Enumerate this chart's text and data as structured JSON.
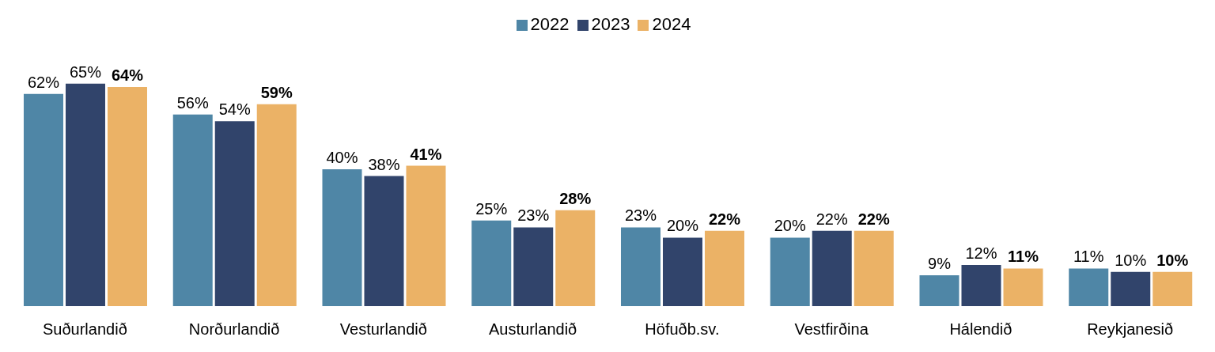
{
  "chart_data": {
    "type": "bar",
    "categories": [
      "Suðurlandið",
      "Norðurlandið",
      "Vesturlandið",
      "Austurlandið",
      "Höfuðb.sv.",
      "Vestfirðina",
      "Hálendið",
      "Reykjanesið"
    ],
    "series": [
      {
        "name": "2022",
        "color": "#4f86a6",
        "values": [
          62,
          56,
          40,
          25,
          23,
          20,
          9,
          11
        ],
        "value_labels": [
          "62%",
          "56%",
          "40%",
          "25%",
          "23%",
          "20%",
          "9%",
          "11%"
        ]
      },
      {
        "name": "2023",
        "color": "#31446b",
        "values": [
          65,
          54,
          38,
          23,
          20,
          22,
          12,
          10
        ],
        "value_labels": [
          "65%",
          "54%",
          "38%",
          "23%",
          "20%",
          "22%",
          "12%",
          "10%"
        ]
      },
      {
        "name": "2024",
        "color": "#ebb266",
        "values": [
          64,
          59,
          41,
          28,
          22,
          22,
          11,
          10
        ],
        "value_labels": [
          "64%",
          "59%",
          "41%",
          "28%",
          "22%",
          "22%",
          "11%",
          "10%"
        ]
      }
    ],
    "legend": "top",
    "grid": false
  }
}
